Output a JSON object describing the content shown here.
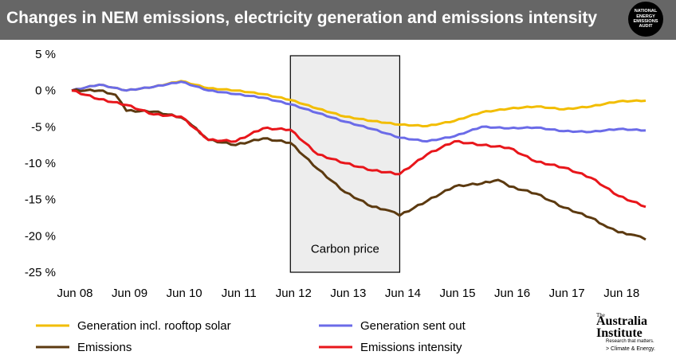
{
  "header": {
    "title": "Changes in NEM emissions, electricity  generation and emissions intensity"
  },
  "logos": {
    "nea": {
      "line1": "NATIONAL",
      "line2": "ENERGY",
      "line3": "EMISSIONS",
      "line4": "AUDIT"
    },
    "tai": {
      "the": "The",
      "name_line1": "Australia",
      "name_line2": "Institute",
      "tagline": "Research that matters.",
      "program": "> Climate & Energy."
    }
  },
  "chart_data": {
    "type": "line",
    "title": "Changes in NEM emissions, electricity  generation and emissions intensity",
    "xlabel": "",
    "ylabel": "",
    "x_start": "Jun 08",
    "x_end": "Dec 18",
    "ylim": [
      -25,
      5
    ],
    "y_ticks": [
      5,
      0,
      -5,
      -10,
      -15,
      -20,
      -25
    ],
    "y_tick_labels": [
      "5 %",
      "0 %",
      "-5 %",
      "-10 %",
      "-15 %",
      "-20 %",
      "-25 %"
    ],
    "x_ticks": [
      0,
      1,
      2,
      3,
      4,
      5,
      6,
      7,
      8,
      9,
      10
    ],
    "x_tick_labels": [
      "Jun 08",
      "Jun 09",
      "Jun 10",
      "Jun 11",
      "Jun 12",
      "Jun 13",
      "Jun 14",
      "Jun 15",
      "Jun 16",
      "Jun 17",
      "Jun 18"
    ],
    "grid": false,
    "legend_position": "bottom",
    "annotation": {
      "label": "Carbon price",
      "start": 4,
      "end": 6
    },
    "series": [
      {
        "name": "Generation incl. rooftop solar",
        "color": "#F2BD00",
        "points": [
          [
            0,
            0
          ],
          [
            0.5,
            0.8
          ],
          [
            1,
            0
          ],
          [
            1.5,
            0.5
          ],
          [
            2,
            1.3
          ],
          [
            2.5,
            0.3
          ],
          [
            3,
            0
          ],
          [
            3.5,
            -0.5
          ],
          [
            4,
            -1.3
          ],
          [
            4.5,
            -2.5
          ],
          [
            5,
            -3.6
          ],
          [
            5.5,
            -4.2
          ],
          [
            6,
            -4.7
          ],
          [
            6.5,
            -4.9
          ],
          [
            7,
            -4.2
          ],
          [
            7.5,
            -3
          ],
          [
            8,
            -2.5
          ],
          [
            8.5,
            -2.2
          ],
          [
            9,
            -2.6
          ],
          [
            9.5,
            -2.2
          ],
          [
            10,
            -1.5
          ],
          [
            10.5,
            -1.4
          ]
        ]
      },
      {
        "name": "Generation sent out",
        "color": "#6B6BE8",
        "points": [
          [
            0,
            0
          ],
          [
            0.5,
            0.8
          ],
          [
            1,
            0
          ],
          [
            1.5,
            0.5
          ],
          [
            2,
            1.2
          ],
          [
            2.5,
            0
          ],
          [
            3,
            -0.5
          ],
          [
            3.5,
            -1
          ],
          [
            4,
            -1.9
          ],
          [
            4.5,
            -3.1
          ],
          [
            5,
            -4.3
          ],
          [
            5.5,
            -5.3
          ],
          [
            6,
            -6.5
          ],
          [
            6.5,
            -7
          ],
          [
            7,
            -6.3
          ],
          [
            7.5,
            -5
          ],
          [
            8,
            -5.2
          ],
          [
            8.5,
            -5.1
          ],
          [
            9,
            -5.6
          ],
          [
            9.5,
            -5.7
          ],
          [
            10,
            -5.3
          ],
          [
            10.5,
            -5.5
          ]
        ]
      },
      {
        "name": "Emissions",
        "color": "#5C3A10",
        "points": [
          [
            0,
            0
          ],
          [
            0.5,
            0
          ],
          [
            0.8,
            -0.6
          ],
          [
            1,
            -2.8
          ],
          [
            1.5,
            -2.9
          ],
          [
            2,
            -3.7
          ],
          [
            2.2,
            -4.8
          ],
          [
            2.5,
            -6.8
          ],
          [
            3,
            -7.5
          ],
          [
            3.5,
            -6.6
          ],
          [
            4,
            -7.2
          ],
          [
            4.5,
            -10.8
          ],
          [
            5,
            -14
          ],
          [
            5.5,
            -16
          ],
          [
            5.8,
            -16.5
          ],
          [
            6,
            -17.2
          ],
          [
            6.5,
            -15.2
          ],
          [
            7,
            -13.2
          ],
          [
            7.5,
            -12.8
          ],
          [
            7.8,
            -12.3
          ],
          [
            8,
            -13.2
          ],
          [
            8.5,
            -14.2
          ],
          [
            9,
            -16.1
          ],
          [
            9.5,
            -17.5
          ],
          [
            9.8,
            -18.8
          ],
          [
            10,
            -19.5
          ],
          [
            10.3,
            -19.9
          ],
          [
            10.5,
            -20.5
          ]
        ]
      },
      {
        "name": "Emissions intensity",
        "color": "#E8161B",
        "points": [
          [
            0,
            0
          ],
          [
            0.5,
            -1.2
          ],
          [
            1,
            -2
          ],
          [
            1.5,
            -3.3
          ],
          [
            2,
            -3.6
          ],
          [
            2.5,
            -6.8
          ],
          [
            3,
            -7
          ],
          [
            3.5,
            -5.2
          ],
          [
            4,
            -5.4
          ],
          [
            4.5,
            -8.8
          ],
          [
            5,
            -10
          ],
          [
            5.5,
            -11
          ],
          [
            6,
            -11.5
          ],
          [
            6.5,
            -8.8
          ],
          [
            7,
            -7
          ],
          [
            7.5,
            -7.5
          ],
          [
            8,
            -7.9
          ],
          [
            8.5,
            -9.8
          ],
          [
            9,
            -10.6
          ],
          [
            9.5,
            -12
          ],
          [
            10,
            -14.5
          ],
          [
            10.5,
            -16
          ]
        ]
      }
    ]
  }
}
